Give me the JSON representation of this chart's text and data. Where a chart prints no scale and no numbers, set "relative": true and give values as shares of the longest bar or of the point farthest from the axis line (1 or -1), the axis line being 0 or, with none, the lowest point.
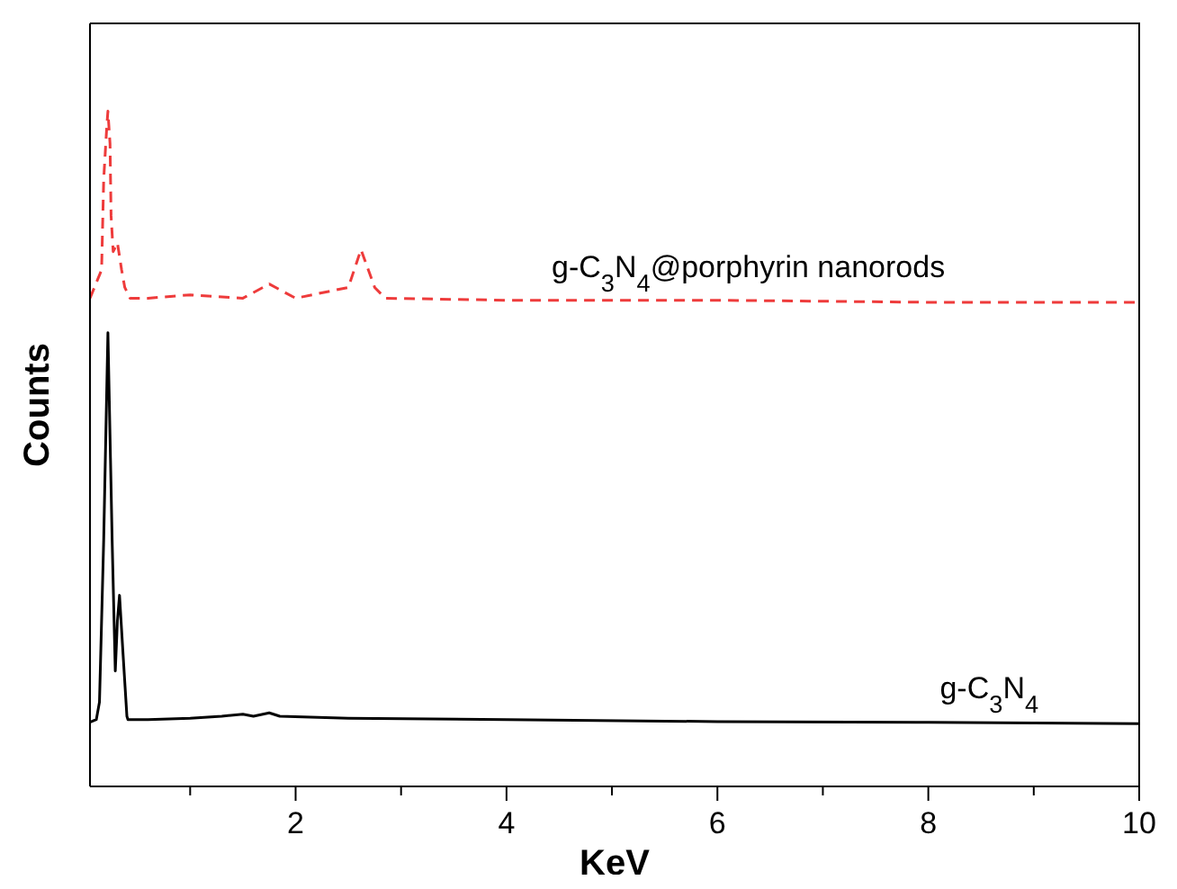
{
  "chart_data": {
    "type": "line",
    "relative": true,
    "xlabel": "KeV",
    "ylabel": "Counts",
    "xlim": [
      0.05,
      10
    ],
    "xticks": [
      {
        "value": 1,
        "label": null
      },
      2,
      {
        "value": 3,
        "label": null
      },
      4,
      {
        "value": 5,
        "label": null
      },
      6,
      {
        "value": 7,
        "label": null
      },
      8,
      {
        "value": 9,
        "label": null
      },
      10
    ],
    "tick_labels": "x",
    "marker": "none",
    "series": [
      {
        "name": "g-C$_{3}$N$_{4}$@porphyrin nanorods",
        "color": "#ee3b3b",
        "line_style": "dashed",
        "x": [
          0.05,
          0.16,
          0.18,
          0.21,
          0.22,
          0.24,
          0.25,
          0.27,
          0.31,
          0.35,
          0.38,
          0.43,
          0.6,
          1.0,
          1.5,
          1.75,
          2.0,
          2.5,
          2.62,
          2.75,
          2.85,
          4,
          6,
          8,
          10
        ],
        "values": [
          0.723,
          0.765,
          0.899,
          0.979,
          1,
          0.952,
          0.845,
          0.792,
          0.805,
          0.765,
          0.739,
          0.723,
          0.723,
          0.728,
          0.723,
          0.744,
          0.723,
          0.739,
          0.795,
          0.739,
          0.723,
          0.72,
          0.72,
          0.717,
          0.717
        ]
      },
      {
        "name": "g-C$_{3}$N$_{4}$",
        "color": "#000000",
        "line_style": "solid",
        "x": [
          0.05,
          0.11,
          0.14,
          0.18,
          0.22,
          0.26,
          0.29,
          0.31,
          0.33,
          0.36,
          0.4,
          0.41,
          0.6,
          1.0,
          1.3,
          1.5,
          1.6,
          1.75,
          1.85,
          2.5,
          4,
          6,
          8,
          10
        ],
        "values": [
          0.095,
          0.099,
          0.125,
          0.365,
          0.672,
          0.365,
          0.171,
          0.245,
          0.283,
          0.205,
          0.104,
          0.099,
          0.099,
          0.101,
          0.104,
          0.107,
          0.104,
          0.109,
          0.104,
          0.101,
          0.099,
          0.096,
          0.095,
          0.093
        ]
      }
    ]
  }
}
